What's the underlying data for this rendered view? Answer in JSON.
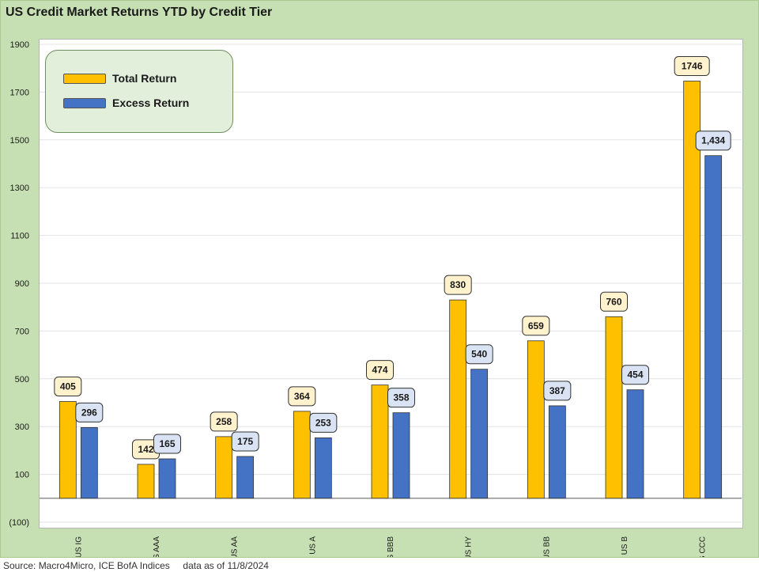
{
  "title": "US Credit Market Returns YTD by Credit Tier",
  "source": "Source: Macro4Micro, ICE BofA Indices     data as of 11/8/2024",
  "colors": {
    "total": "#ffc000",
    "excess": "#4472c4",
    "total_label_bg": "#fff2cc",
    "excess_label_bg": "#dae3f3"
  },
  "chart_data": {
    "type": "bar",
    "categories": [
      "US IG",
      "US AAA",
      "US AA",
      "US A",
      "US BBB",
      "US HY",
      "US BB",
      "US B",
      "US CCC"
    ],
    "series": [
      {
        "name": "Total Return",
        "values": [
          405,
          142,
          258,
          364,
          474,
          830,
          659,
          760,
          1746
        ],
        "labels": [
          "405",
          "142",
          "258",
          "364",
          "474",
          "830",
          "659",
          "760",
          "1746"
        ]
      },
      {
        "name": "Excess Return",
        "values": [
          296,
          165,
          175,
          253,
          358,
          540,
          387,
          454,
          1434
        ],
        "labels": [
          "296",
          "165",
          "175",
          "253",
          "358",
          "540",
          "387",
          "454",
          "1,434"
        ]
      }
    ],
    "y_ticks": [
      -100,
      100,
      300,
      500,
      700,
      900,
      1100,
      1300,
      1500,
      1700,
      1900
    ],
    "y_tick_labels": [
      "(100)",
      "100",
      "300",
      "500",
      "700",
      "900",
      "1100",
      "1300",
      "1500",
      "1700",
      "1900"
    ],
    "ylim": [
      -100,
      1900
    ],
    "grid": true,
    "legend_position": "top-left"
  }
}
